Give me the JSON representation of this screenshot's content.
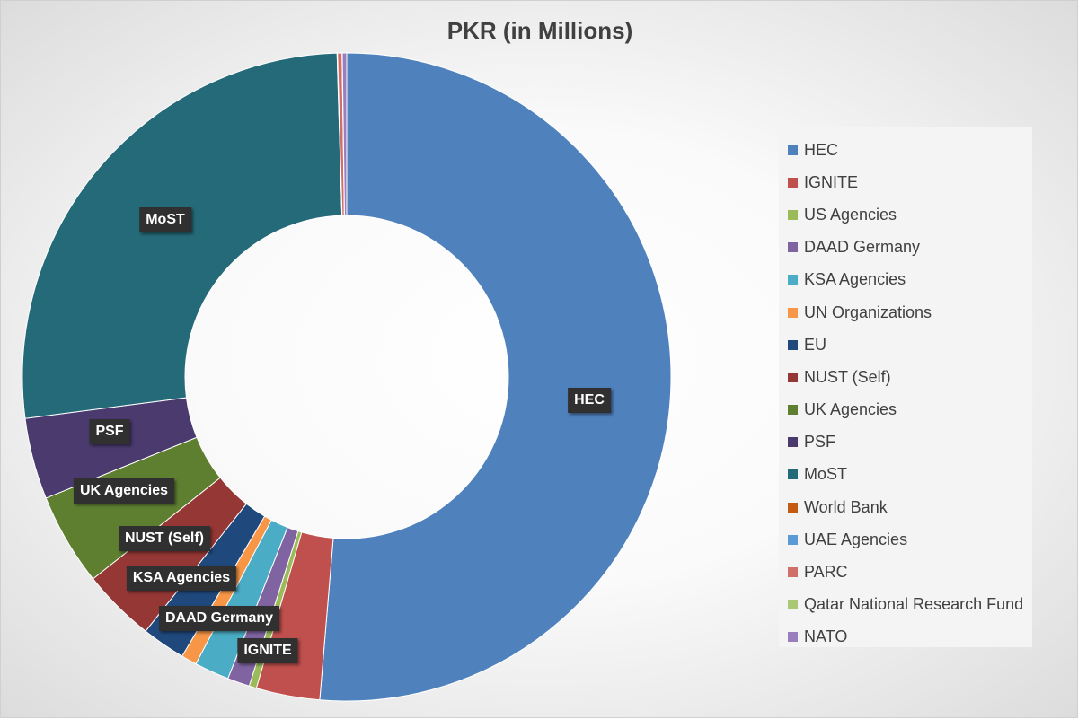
{
  "chart_data": {
    "type": "pie",
    "title": "PKR (in Millions)",
    "donut": true,
    "legend_position": "right",
    "series": [
      {
        "name": "HEC",
        "value": 1393.0,
        "color": "#4f81bd",
        "label": "HEC"
      },
      {
        "name": "IGNITE",
        "value": 86.0,
        "color": "#c0504d",
        "label": "IGNITE"
      },
      {
        "name": "US Agencies",
        "value": 10.0,
        "color": "#9bbb59",
        "label": ""
      },
      {
        "name": "DAAD Germany",
        "value": 30.0,
        "color": "#8064a2",
        "label": "DAAD Germany"
      },
      {
        "name": "KSA Agencies",
        "value": 47.0,
        "color": "#4bacc6",
        "label": "KSA Agencies"
      },
      {
        "name": "UN Organizations",
        "value": 21.0,
        "color": "#f79646",
        "label": ""
      },
      {
        "name": "EU",
        "value": 59.0,
        "color": "#1f497d",
        "label": ""
      },
      {
        "name": "NUST (Self)",
        "value": 99.0,
        "color": "#953735",
        "label": "NUST (Self)"
      },
      {
        "name": "UK Agencies",
        "value": 125.0,
        "color": "#5e7f30",
        "label": "UK Agencies"
      },
      {
        "name": "PSF",
        "value": 110.0,
        "color": "#4a3a6e",
        "label": "PSF"
      },
      {
        "name": "MoST",
        "value": 721.0,
        "color": "#256a78",
        "label": "MoST"
      },
      {
        "name": "World Bank",
        "value": 0.3,
        "color": "#c55a11",
        "label": ""
      },
      {
        "name": "UAE Agencies",
        "value": 0.3,
        "color": "#5b9bd5",
        "label": ""
      },
      {
        "name": "PARC",
        "value": 6.0,
        "color": "#d06e6a",
        "label": ""
      },
      {
        "name": "Qatar National Research Fund",
        "value": 0.3,
        "color": "#a9c974",
        "label": ""
      },
      {
        "name": "NATO",
        "value": 6.0,
        "color": "#9a7fbf",
        "label": ""
      }
    ]
  }
}
